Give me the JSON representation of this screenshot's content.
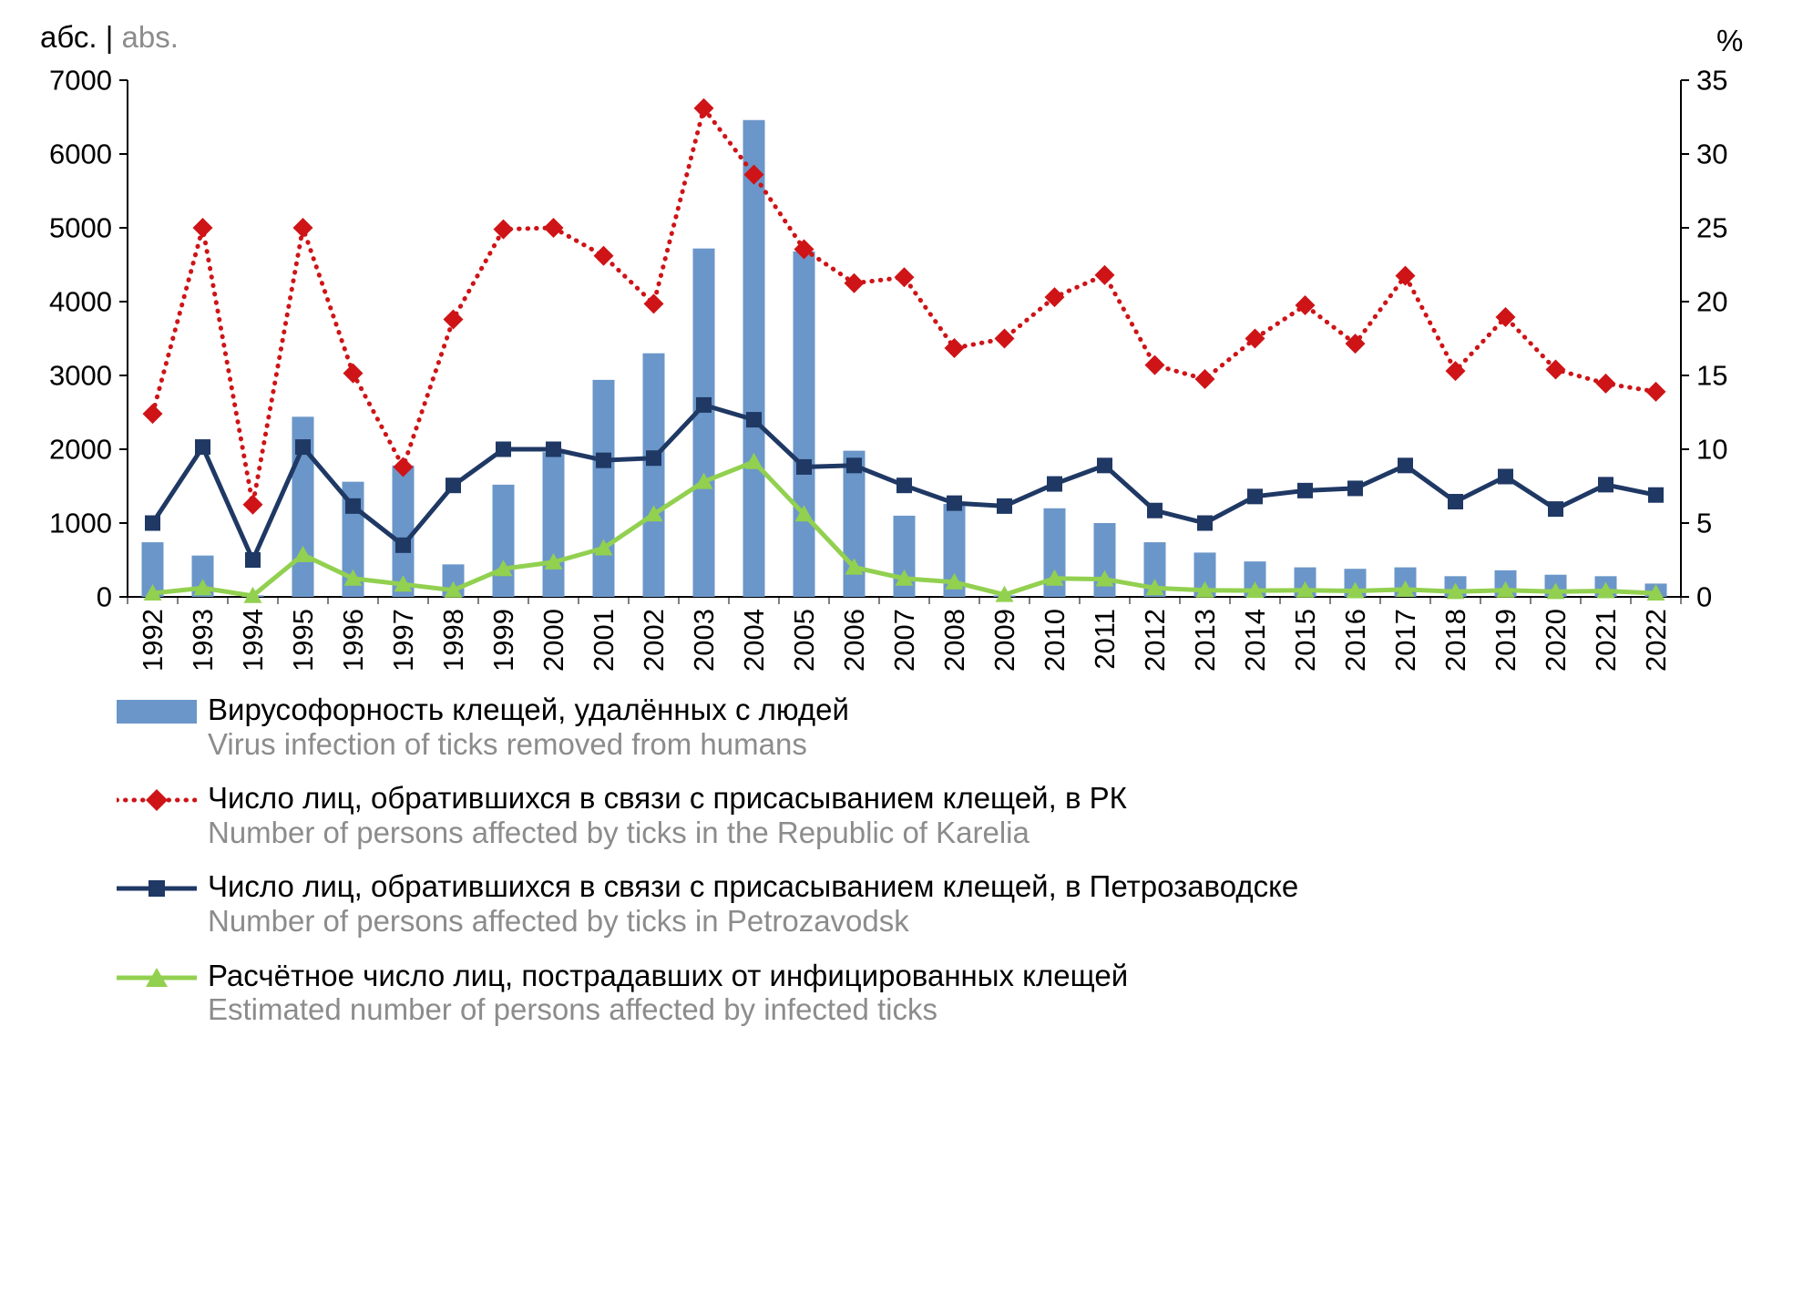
{
  "header": {
    "left_axis_label_ru": "абс.",
    "separator": " | ",
    "left_axis_label_en": "abs.",
    "right_axis_label": "%"
  },
  "colors": {
    "text_primary": "#000000",
    "text_secondary": "#8c8c8c",
    "background": "#ffffff",
    "bar_blue": "#6b96c9",
    "line_red": "#ce1417",
    "line_navy": "#1f3864",
    "line_green": "#92d050"
  },
  "legend": {
    "items": [
      {
        "ru": "Вирусофорность клещей, удалённых с людей",
        "en": "Virus infection of ticks removed from humans"
      },
      {
        "ru": "Число лиц, обратившихся в связи с присасыванием клещей, в РК",
        "en": "Number of persons affected by ticks in the Republic of Karelia"
      },
      {
        "ru": "Число лиц, обратившихся в связи с присасыванием клещей, в Петрозаводске",
        "en": "Number of persons affected by ticks in Petrozavodsk"
      },
      {
        "ru": "Расчётное число лиц, пострадавших от инфицированных клещей",
        "en": "Estimated number of persons affected by infected ticks"
      }
    ]
  },
  "chart_data": {
    "type": "combo",
    "grid": false,
    "legend_position": "bottom",
    "categories": [
      "1992",
      "1993",
      "1994",
      "1995",
      "1996",
      "1997",
      "1998",
      "1999",
      "2000",
      "2001",
      "2002",
      "2003",
      "2004",
      "2005",
      "2006",
      "2007",
      "2008",
      "2009",
      "2010",
      "2011",
      "2012",
      "2013",
      "2014",
      "2015",
      "2016",
      "2017",
      "2018",
      "2019",
      "2020",
      "2021",
      "2022"
    ],
    "left_axis": {
      "title_ru": "абс.",
      "title_en": "abs.",
      "min": 0,
      "max": 7000,
      "step": 1000,
      "ticks": [
        0,
        1000,
        2000,
        3000,
        4000,
        5000,
        6000,
        7000
      ]
    },
    "right_axis": {
      "title": "%",
      "min": 0,
      "max": 35,
      "step": 5,
      "ticks": [
        0,
        5,
        10,
        15,
        20,
        25,
        30,
        35
      ]
    },
    "series": [
      {
        "key": "virus-infection-bars",
        "name": "Вирусофорность клещей, удалённых с людей",
        "name_en": "Virus infection of ticks removed from humans",
        "type": "bar",
        "axis": "right",
        "color": "#6b96c9",
        "values": [
          3.7,
          2.8,
          0.1,
          12.2,
          7.8,
          8.9,
          2.2,
          7.6,
          9.8,
          14.7,
          16.5,
          23.6,
          32.3,
          23.4,
          9.9,
          5.5,
          6.3,
          0.1,
          6.0,
          5.0,
          3.7,
          3.0,
          2.4,
          2.0,
          1.9,
          2.0,
          1.4,
          1.8,
          1.5,
          1.4,
          0.9
        ]
      },
      {
        "key": "karelia-line",
        "name": "Число лиц, обратившихся в связи с присасыванием клещей, в РК",
        "name_en": "Number of persons affected by ticks in the Republic of Karelia",
        "type": "line",
        "line_style": "dotted",
        "marker": "diamond",
        "axis": "left",
        "color": "#ce1417",
        "values": [
          2480,
          5000,
          1250,
          5000,
          3030,
          1760,
          3760,
          4980,
          5000,
          4620,
          3970,
          6620,
          5720,
          4710,
          4250,
          4330,
          3370,
          3500,
          4060,
          4360,
          3140,
          2950,
          3500,
          3950,
          3430,
          4350,
          3060,
          3790,
          3080,
          2890,
          2780
        ]
      },
      {
        "key": "petrozavodsk-line",
        "name": "Число лиц, обратившихся в связи с присасыванием клещей, в Петрозаводске",
        "name_en": "Number of persons affected by ticks in Petrozavodsk",
        "type": "line",
        "line_style": "solid",
        "marker": "square",
        "axis": "left",
        "color": "#1f3864",
        "values": [
          1000,
          2030,
          500,
          2030,
          1230,
          700,
          1510,
          2000,
          2000,
          1850,
          1880,
          2600,
          2400,
          1760,
          1780,
          1510,
          1270,
          1230,
          1530,
          1780,
          1170,
          1000,
          1360,
          1440,
          1470,
          1780,
          1290,
          1630,
          1190,
          1520,
          1380
        ]
      },
      {
        "key": "estimated-line",
        "name": "Расчётное число лиц, пострадавших от инфицированных клещей",
        "name_en": "Estimated number of persons affected by infected ticks",
        "type": "line",
        "line_style": "solid",
        "marker": "triangle",
        "axis": "left",
        "color": "#92d050",
        "values": [
          50,
          120,
          15,
          570,
          250,
          170,
          90,
          380,
          470,
          660,
          1120,
          1560,
          1830,
          1120,
          400,
          250,
          200,
          30,
          250,
          240,
          120,
          90,
          85,
          90,
          80,
          100,
          70,
          90,
          70,
          80,
          50
        ]
      }
    ]
  }
}
